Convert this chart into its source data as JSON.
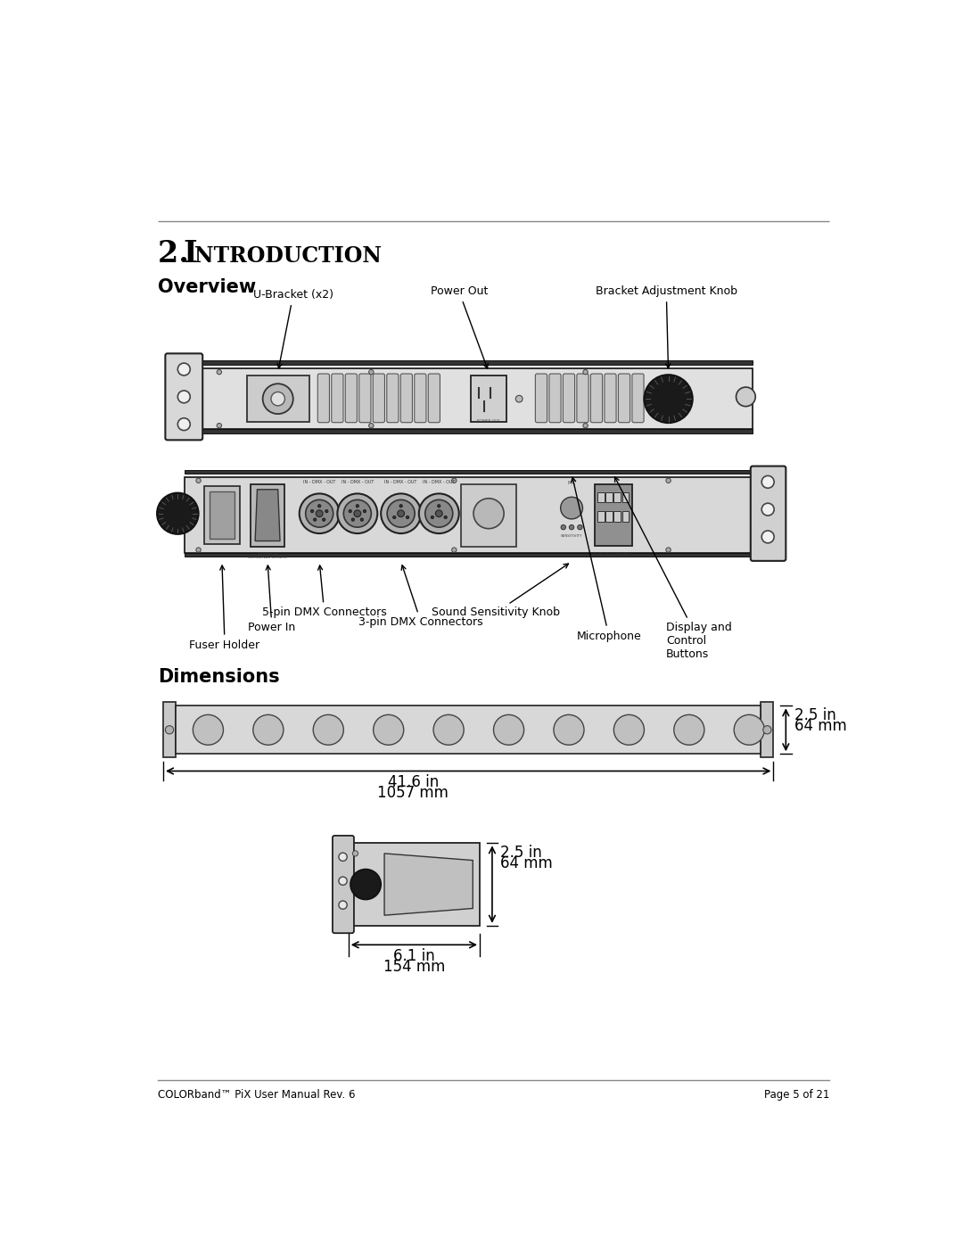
{
  "bg_color": "#ffffff",
  "text_color": "#000000",
  "line_color": "#666666",
  "footer_left": "COLORband™ PiX User Manual Rev. 6",
  "footer_right": "Page 5 of 21",
  "title_num": "2.",
  "title_word": "I",
  "title_rest": "NTRODUCTION",
  "section1": "Overview",
  "section2": "Dimensions",
  "top_labels": [
    "U-Bracket (x2)",
    "Power Out",
    "Bracket Adjustment Knob"
  ],
  "bot_labels": [
    "Fuser Holder",
    "Power In",
    "5-pin DMX Connectors",
    "3-pin DMX Connectors",
    "Sound Sensitivity Knob",
    "Microphone",
    "Display and\nControl\nButtons"
  ],
  "dim1_w": "41.6 in",
  "dim1_wmm": "1057 mm",
  "dim1_h": "2.5 in",
  "dim1_hmm": "64 mm",
  "dim2_d": "6.1 in",
  "dim2_dmm": "154 mm",
  "dim2_h": "2.5 in",
  "dim2_hmm": "64 mm"
}
